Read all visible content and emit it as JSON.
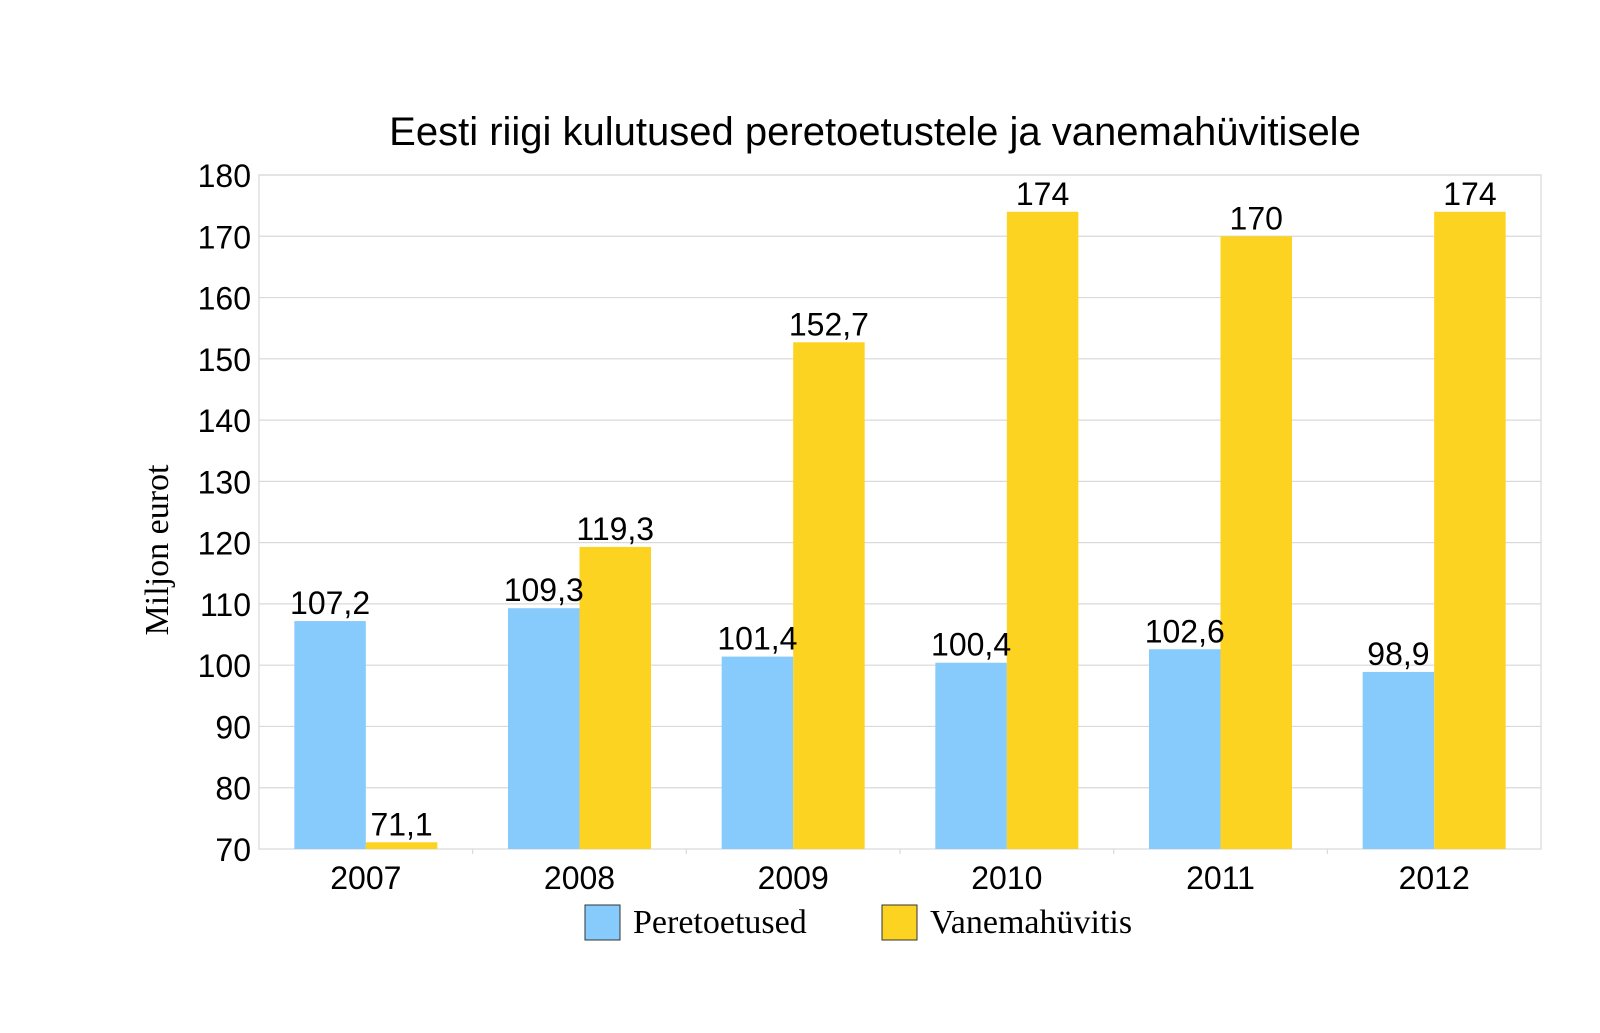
{
  "chart_data": {
    "type": "bar",
    "title": "Eesti riigi kulutused peretoetustele ja vanemahüvitisele",
    "xlabel": "",
    "ylabel": "Miljon eurot",
    "ylim": [
      70,
      180
    ],
    "yticks": [
      70,
      80,
      90,
      100,
      110,
      120,
      130,
      140,
      150,
      160,
      170,
      180
    ],
    "grid": true,
    "legend_position": "bottom",
    "categories": [
      "2007",
      "2008",
      "2009",
      "2010",
      "2011",
      "2012"
    ],
    "series": [
      {
        "name": "Peretoetused",
        "color": "#87cbfd",
        "values": [
          107.2,
          109.3,
          101.4,
          100.4,
          102.6,
          98.9
        ],
        "labels": [
          "107,2",
          "109,3",
          "101,4",
          "100,4",
          "102,6",
          "98,9"
        ]
      },
      {
        "name": "Vanemahüvitis",
        "color": "#fdd322",
        "values": [
          71.1,
          119.3,
          152.7,
          174,
          170,
          174
        ],
        "labels": [
          "71,1",
          "119,3",
          "152,7",
          "174",
          "170",
          "174"
        ]
      }
    ]
  }
}
